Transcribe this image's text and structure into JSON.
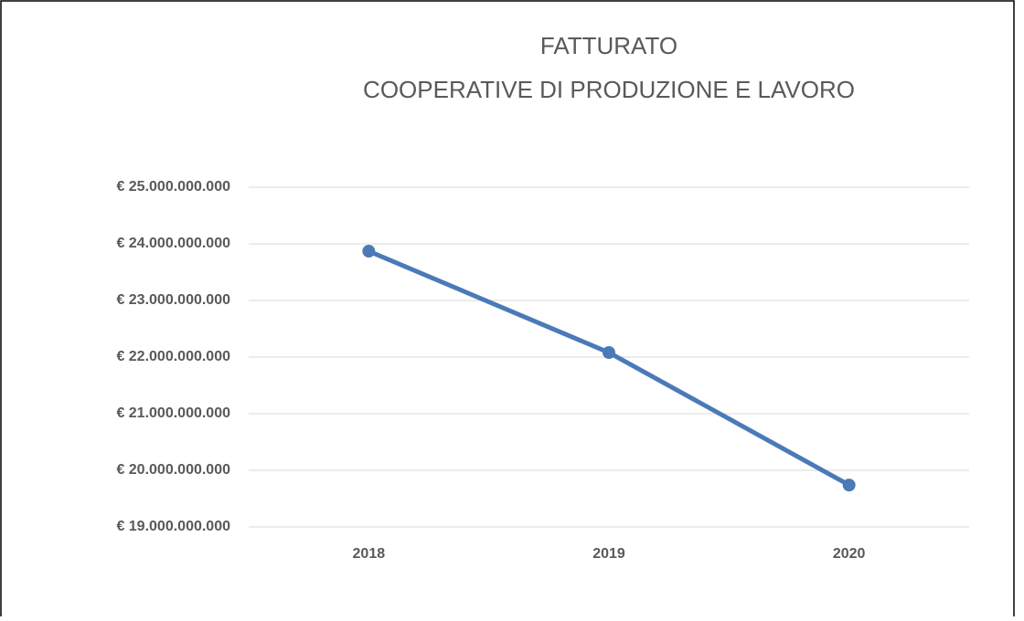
{
  "chart_data": {
    "type": "line",
    "title": "FATTURATO",
    "subtitle": "COOPERATIVE DI PRODUZIONE E LAVORO",
    "categories": [
      "2018",
      "2019",
      "2020"
    ],
    "series": [
      {
        "name": "Fatturato",
        "color": "#4a7ab8",
        "values": [
          23870000000,
          22080000000,
          19740000000
        ]
      }
    ],
    "ylim": [
      19000000000,
      25000000000
    ],
    "yticks": [
      {
        "value": 19000000000,
        "label": "€ 19.000.000.000"
      },
      {
        "value": 20000000000,
        "label": "€ 20.000.000.000"
      },
      {
        "value": 21000000000,
        "label": "€ 21.000.000.000"
      },
      {
        "value": 22000000000,
        "label": "€ 22.000.000.000"
      },
      {
        "value": 23000000000,
        "label": "€ 23.000.000.000"
      },
      {
        "value": 24000000000,
        "label": "€ 24.000.000.000"
      },
      {
        "value": 25000000000,
        "label": "€ 25.000.000.000"
      }
    ],
    "grid": true,
    "legend": false
  }
}
